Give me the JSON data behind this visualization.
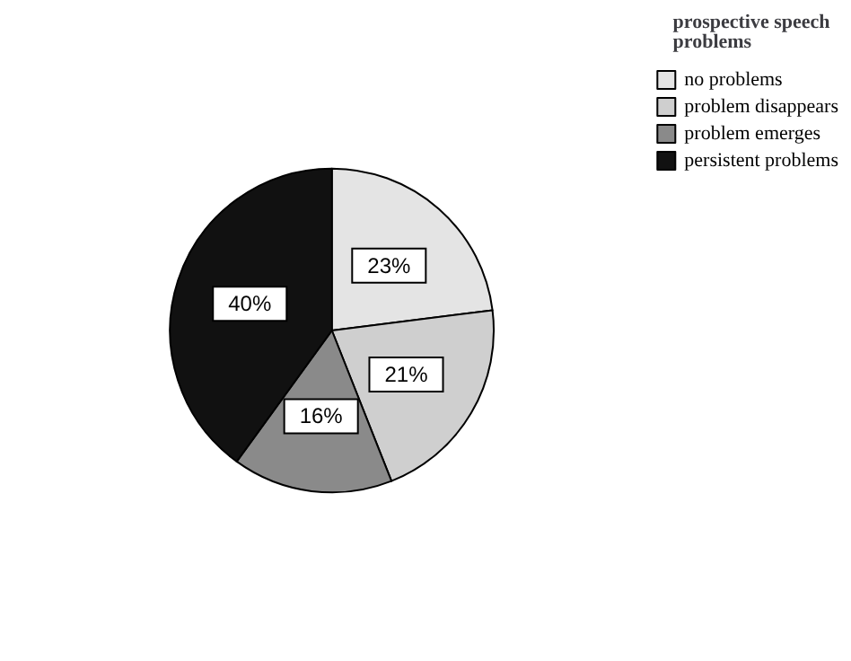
{
  "chart_data": {
    "type": "pie",
    "legend_title": "prospective speech problems",
    "categories": [
      "no problems",
      "problem disappears",
      "problem emerges",
      "persistent problems"
    ],
    "values": [
      23,
      21,
      16,
      40
    ],
    "colors": [
      "#e4e4e4",
      "#cfcfcf",
      "#8a8a8a",
      "#111111"
    ],
    "legend": "top right",
    "value_labels": [
      "23%",
      "21%",
      "16%",
      "40%"
    ]
  }
}
